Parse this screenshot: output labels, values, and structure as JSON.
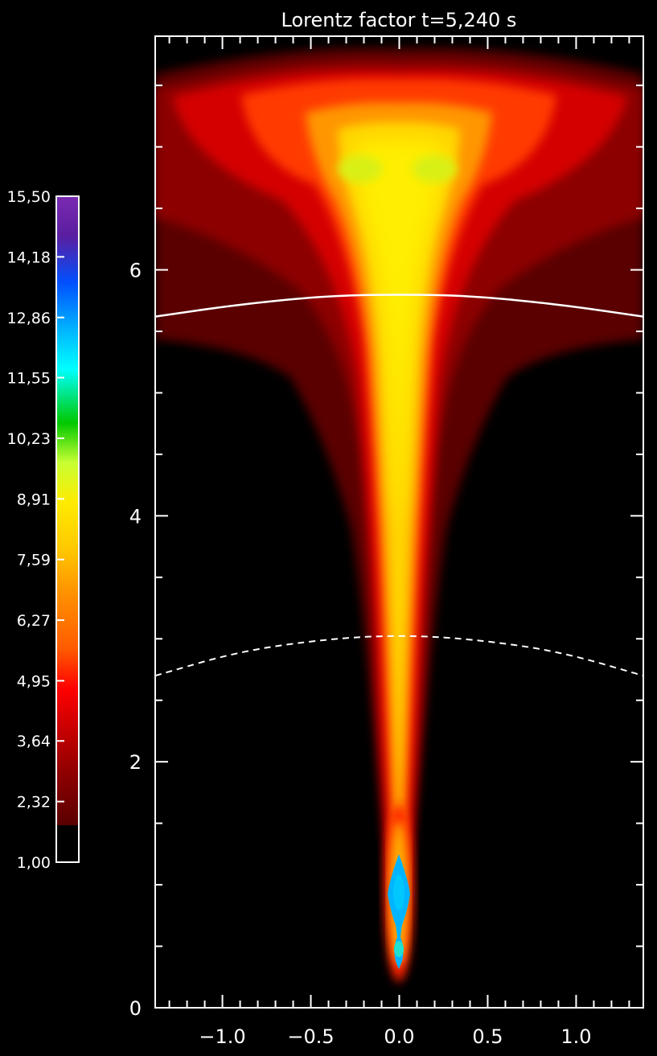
{
  "chart_data": {
    "type": "heatmap",
    "title": "Lorentz factor t=5,240 s",
    "xlabel": "",
    "ylabel": "",
    "xlim": [
      -1.38,
      1.38
    ],
    "ylim": [
      0,
      7.9
    ],
    "x_ticks": [
      -1.0,
      -0.5,
      0.0,
      0.5,
      1.0
    ],
    "x_tick_labels": [
      "−1.0",
      "−0.5",
      "0.0",
      "0.5",
      "1.0"
    ],
    "y_ticks": [
      0,
      2,
      4,
      6
    ],
    "y_tick_labels": [
      "0",
      "2",
      "4",
      "6"
    ],
    "colorbar": {
      "min": 1.0,
      "max": 15.5,
      "tick_values": [
        1.0,
        2.32,
        3.64,
        4.95,
        6.27,
        7.59,
        8.91,
        10.23,
        11.55,
        12.86,
        14.18,
        15.5
      ],
      "tick_labels": [
        "1,00",
        "2,32",
        "3,64",
        "4,95",
        "6,27",
        "7,59",
        "8,91",
        "10,23",
        "11,55",
        "12,86",
        "14,18",
        "15,50"
      ],
      "colors": [
        "#000000",
        "#5a0000",
        "#8c0000",
        "#c80000",
        "#ff0000",
        "#ff5a00",
        "#ff9600",
        "#ffc800",
        "#ffeb00",
        "#c8ff32",
        "#00c800",
        "#00ffff",
        "#00b4ff",
        "#0050ff",
        "#5a1ea0",
        "#7a2ab0"
      ]
    },
    "field": {
      "description_values": "Lorentz factor map: jet core along x=0 with values ~5-8, broad lobe at top with values ~2-9, peak ~9 near (±0.15, 6.8), small high region ~12-13 near (0.0, 1.0)",
      "core_profile": [
        {
          "y": 0.1,
          "value": 4.0
        },
        {
          "y": 0.5,
          "value": 11.5
        },
        {
          "y": 0.9,
          "value": 12.5
        },
        {
          "y": 1.2,
          "value": 11.0
        },
        {
          "y": 1.6,
          "value": 5.5
        },
        {
          "y": 2.4,
          "value": 6.5
        },
        {
          "y": 3.0,
          "value": 7.0
        },
        {
          "y": 4.0,
          "value": 7.5
        },
        {
          "y": 5.0,
          "value": 7.0
        },
        {
          "y": 6.0,
          "value": 8.0
        },
        {
          "y": 6.8,
          "value": 9.0
        }
      ]
    },
    "overlay_lines": [
      {
        "style": "solid",
        "color": "#ffffff",
        "points": [
          [
            -1.38,
            5.62
          ],
          [
            -0.9,
            5.72
          ],
          [
            -0.4,
            5.79
          ],
          [
            0.0,
            5.8
          ],
          [
            0.4,
            5.79
          ],
          [
            0.9,
            5.72
          ],
          [
            1.38,
            5.62
          ]
        ]
      },
      {
        "style": "dashed",
        "color": "#ffffff",
        "points": [
          [
            -1.38,
            2.7
          ],
          [
            -0.9,
            2.9
          ],
          [
            -0.4,
            3.0
          ],
          [
            0.0,
            3.03
          ],
          [
            0.4,
            3.0
          ],
          [
            0.9,
            2.9
          ],
          [
            1.38,
            2.7
          ]
        ]
      }
    ]
  }
}
